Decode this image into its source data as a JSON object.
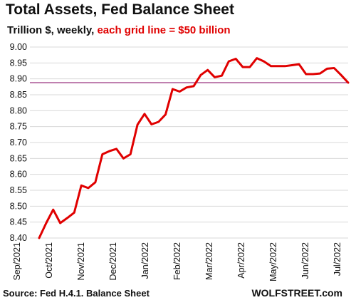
{
  "title": "Total Assets, Fed Balance Sheet",
  "subtitle": {
    "part1": "Trillion $, weekly, ",
    "part2": "each grid line = $50 billion"
  },
  "source": "Source: Fed H.4.1. Balance Sheet",
  "brand": "WOLFSTREET.com",
  "colors": {
    "line": "#e00000",
    "reference_line": "#800060",
    "grid": "#d9d9d9",
    "accent_text": "#e00000"
  },
  "chart_data": {
    "type": "line",
    "title": "Total Assets, Fed Balance Sheet",
    "ylabel": "Trillion $",
    "ylim": [
      8.4,
      9.0
    ],
    "yticks": [
      "8.40",
      "8.45",
      "8.50",
      "8.55",
      "8.60",
      "8.65",
      "8.70",
      "8.75",
      "8.80",
      "8.85",
      "8.90",
      "8.95",
      "9.00"
    ],
    "xticks": [
      "Sep/2021",
      "Oct/2021",
      "Nov/2021",
      "Dec/2021",
      "Jan/2022",
      "Feb/2022",
      "Mar/2022",
      "Apr/2022",
      "May/2022",
      "Jun/2022",
      "Jul/2022"
    ],
    "grid": true,
    "reference_line": 8.888,
    "series": [
      {
        "values": [
          8.4,
          8.447,
          8.489,
          8.447,
          8.463,
          8.48,
          8.565,
          8.557,
          8.575,
          8.663,
          8.673,
          8.68,
          8.65,
          8.663,
          8.756,
          8.79,
          8.757,
          8.765,
          8.788,
          8.868,
          8.86,
          8.873,
          8.877,
          8.912,
          8.928,
          8.905,
          8.91,
          8.955,
          8.963,
          8.937,
          8.937,
          8.965,
          8.955,
          8.94,
          8.94,
          8.94,
          8.943,
          8.946,
          8.915,
          8.915,
          8.917,
          8.932,
          8.934,
          8.912,
          8.888
        ]
      }
    ]
  }
}
